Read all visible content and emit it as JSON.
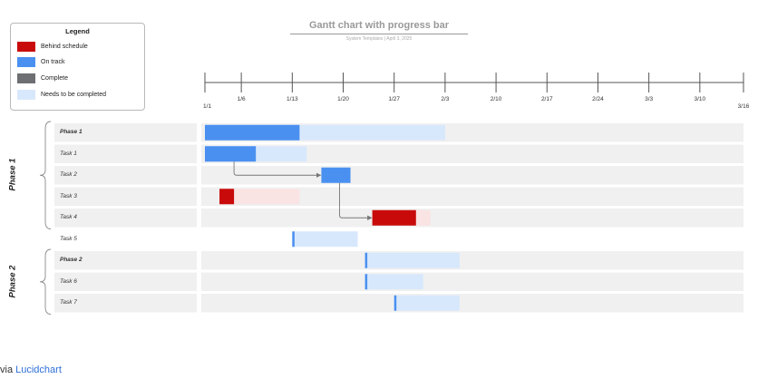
{
  "legend": {
    "title": "Legend",
    "items": [
      {
        "label": "Behind schedule",
        "color": "#c80a0a"
      },
      {
        "label": "On track",
        "color": "#4a90f0"
      },
      {
        "label": "Complete",
        "color": "#6d6f72"
      },
      {
        "label": "Needs to be completed",
        "color": "#d8e8fc"
      }
    ]
  },
  "header": {
    "title": "Gantt chart with progress bar",
    "subtitle": "System Templates  |  April 3, 2025"
  },
  "credit": {
    "prefix": "via ",
    "link": "Lucidchart"
  },
  "colors": {
    "behind": "#c80a0a",
    "behind_light": "#fae3e3",
    "on_track": "#4a90f0",
    "remaining": "#d8e8fc",
    "row_band": "#f0f0f0",
    "axis": "#555555",
    "arrow": "#777777"
  },
  "chart_data": {
    "type": "gantt",
    "title": "Gantt chart with progress bar",
    "x_axis": {
      "ticks": [
        "1/1",
        "1/6",
        "1/13",
        "1/20",
        "1/27",
        "2/3",
        "2/10",
        "2/17",
        "2/24",
        "3/3",
        "3/10",
        "3/16"
      ],
      "start": "1/1",
      "end": "3/16"
    },
    "phases": [
      {
        "name": "Phase 1",
        "rows": [
          "Phase 1",
          "Task 1",
          "Task 2",
          "Task 3",
          "Task 4"
        ]
      },
      {
        "name": "Phase 2",
        "rows": [
          "Phase 2",
          "Task 6",
          "Task 7"
        ]
      }
    ],
    "tasks": [
      {
        "name": "Phase 1",
        "bold": true,
        "start": "1/1",
        "end": "2/3",
        "progress_end": "1/14",
        "status": "on_track"
      },
      {
        "name": "Task 1",
        "bold": false,
        "start": "1/1",
        "end": "1/15",
        "progress_end": "1/8",
        "status": "on_track"
      },
      {
        "name": "Task 2",
        "bold": false,
        "start": "1/17",
        "end": "1/21",
        "progress_end": "1/21",
        "status": "on_track"
      },
      {
        "name": "Task 3",
        "bold": false,
        "start": "1/3",
        "end": "1/14",
        "progress_end": "1/5",
        "status": "behind"
      },
      {
        "name": "Task 4",
        "bold": false,
        "start": "1/24",
        "end": "2/1",
        "progress_end": "1/30",
        "status": "behind"
      },
      {
        "name": "Task 5",
        "bold": false,
        "start": "1/13",
        "end": "1/22",
        "progress_end": "1/13",
        "status": "on_track"
      },
      {
        "name": "Phase 2",
        "bold": true,
        "start": "1/23",
        "end": "2/5",
        "progress_end": "1/23",
        "status": "on_track"
      },
      {
        "name": "Task 6",
        "bold": false,
        "start": "1/23",
        "end": "1/31",
        "progress_end": "1/23",
        "status": "on_track"
      },
      {
        "name": "Task 7",
        "bold": false,
        "start": "1/27",
        "end": "2/5",
        "progress_end": "1/27",
        "status": "on_track"
      }
    ],
    "dependencies": [
      {
        "from": "Task 1",
        "to": "Task 2"
      },
      {
        "from": "Task 2",
        "to": "Task 4"
      }
    ],
    "grid": false
  }
}
